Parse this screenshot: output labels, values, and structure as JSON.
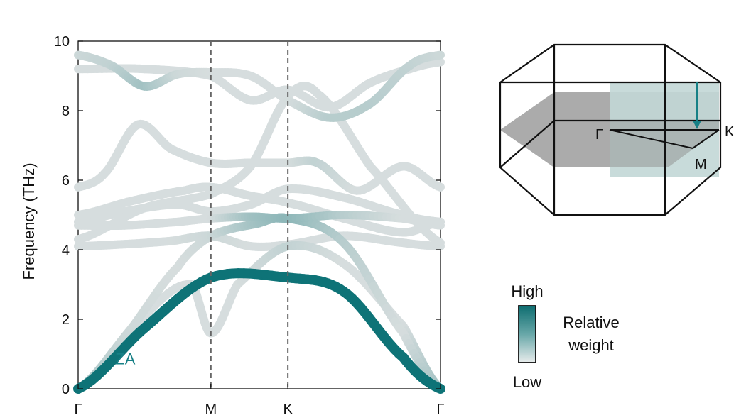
{
  "chart_data": {
    "type": "line",
    "ylabel": "Frequency (THz)",
    "ylim": [
      0,
      10
    ],
    "yticks": [
      0,
      2,
      4,
      6,
      8,
      10
    ],
    "x_path": [
      "Γ",
      "M",
      "K",
      "Γ"
    ],
    "x_positions": [
      0,
      1,
      1.58,
      2.73
    ],
    "vlines_at": [
      "M",
      "K"
    ],
    "grid": false,
    "colors": {
      "high": "#0e7377",
      "low": "#dde3e3",
      "band_gray": "#e1e3e3",
      "annot": "#178086"
    },
    "annotation": {
      "text": "ZA",
      "x": 0.28,
      "y": 0.7
    },
    "series": [
      {
        "x": [
          0,
          0.5,
          1.0,
          1.58,
          2.0,
          2.45,
          2.73
        ],
        "y": [
          0.0,
          1.75,
          3.2,
          3.2,
          2.8,
          0.9,
          0.0
        ],
        "weight": [
          1,
          1,
          1,
          1,
          1,
          1,
          1
        ]
      },
      {
        "x": [
          0,
          0.35,
          0.75,
          1.0,
          1.35,
          1.58,
          2.0,
          2.45,
          2.73
        ],
        "y": [
          0.0,
          1.5,
          3.5,
          4.4,
          4.75,
          4.9,
          4.2,
          1.6,
          0.0
        ],
        "weight": [
          0.3,
          0.1,
          0.05,
          0.1,
          0.3,
          0.4,
          0.2,
          0.05,
          0.3
        ]
      },
      {
        "x": [
          0,
          0.45,
          0.85,
          1.0,
          1.2,
          1.58,
          2.0,
          2.45,
          2.73
        ],
        "y": [
          0.0,
          1.9,
          3.0,
          1.6,
          3.0,
          4.1,
          3.6,
          1.8,
          0.0
        ],
        "weight": [
          0.3,
          0.05,
          0.05,
          0.05,
          0.05,
          0.15,
          0.05,
          0.05,
          0.3
        ]
      },
      {
        "x": [
          0,
          0.3,
          0.7,
          1.0,
          1.3,
          1.58,
          2.0,
          2.45,
          2.73
        ],
        "y": [
          4.1,
          4.15,
          4.25,
          4.4,
          4.1,
          4.15,
          4.4,
          4.2,
          4.1
        ],
        "weight": [
          0.05,
          0.05,
          0.05,
          0.1,
          0.05,
          0.05,
          0.05,
          0.05,
          0.05
        ]
      },
      {
        "x": [
          0,
          0.35,
          0.75,
          1.0,
          1.3,
          1.58,
          2.0,
          2.45,
          2.73
        ],
        "y": [
          4.7,
          4.7,
          4.8,
          4.9,
          4.95,
          4.9,
          5.0,
          4.9,
          4.7
        ],
        "weight": [
          0.05,
          0.05,
          0.05,
          0.05,
          0.3,
          0.4,
          0.2,
          0.05,
          0.05
        ]
      },
      {
        "x": [
          0,
          0.35,
          0.75,
          1.0,
          1.3,
          1.58,
          2.0,
          2.45,
          2.73
        ],
        "y": [
          4.8,
          5.1,
          5.3,
          5.1,
          5.3,
          5.75,
          5.5,
          5.0,
          4.8
        ],
        "weight": [
          0.05,
          0.05,
          0.05,
          0.05,
          0.05,
          0.05,
          0.05,
          0.05,
          0.05
        ]
      },
      {
        "x": [
          0,
          0.4,
          0.8,
          1.0,
          1.3,
          1.58,
          2.0,
          2.45,
          2.73
        ],
        "y": [
          5.0,
          5.4,
          5.7,
          5.8,
          5.55,
          5.35,
          4.9,
          4.5,
          4.8
        ],
        "weight": [
          0.05,
          0.05,
          0.05,
          0.05,
          0.05,
          0.05,
          0.05,
          0.05,
          0.05
        ]
      },
      {
        "x": [
          0,
          0.2,
          0.45,
          0.7,
          1.0,
          1.3,
          1.58,
          1.8,
          2.1,
          2.45,
          2.73
        ],
        "y": [
          5.8,
          6.2,
          7.6,
          6.9,
          6.5,
          6.5,
          6.5,
          6.5,
          5.7,
          6.4,
          5.8
        ],
        "weight": [
          0.05,
          0.05,
          0.05,
          0.05,
          0.05,
          0.05,
          0.05,
          0.15,
          0.05,
          0.05,
          0.05
        ]
      },
      {
        "x": [
          0,
          0.5,
          1.0,
          1.3,
          1.58,
          1.8,
          2.2,
          2.73
        ],
        "y": [
          4.3,
          5.2,
          5.6,
          6.4,
          8.4,
          8.5,
          6.4,
          4.2
        ],
        "weight": [
          0.05,
          0.05,
          0.05,
          0.05,
          0.05,
          0.05,
          0.05,
          0.05
        ]
      },
      {
        "x": [
          0,
          0.25,
          0.5,
          0.75,
          1.0,
          1.3,
          1.58,
          1.9,
          2.2,
          2.5,
          2.73
        ],
        "y": [
          9.6,
          9.3,
          8.7,
          9.05,
          9.1,
          9.0,
          8.3,
          7.8,
          8.2,
          9.3,
          9.6
        ],
        "weight": [
          0.1,
          0.15,
          0.3,
          0.1,
          0.05,
          0.05,
          0.05,
          0.2,
          0.2,
          0.15,
          0.1
        ]
      },
      {
        "x": [
          0,
          0.5,
          1.0,
          1.3,
          1.58,
          1.9,
          2.2,
          2.5,
          2.73
        ],
        "y": [
          9.2,
          9.2,
          9.0,
          8.3,
          8.6,
          8.1,
          8.8,
          9.2,
          9.4
        ],
        "weight": [
          0.05,
          0.05,
          0.05,
          0.05,
          0.05,
          0.05,
          0.05,
          0.05,
          0.05
        ]
      }
    ]
  },
  "legend": {
    "high_label": "High",
    "low_label": "Low",
    "title_line1": "Relative",
    "title_line2": "weight"
  },
  "bz": {
    "gamma_label": "Γ",
    "k_label": "K",
    "m_label": "M"
  }
}
